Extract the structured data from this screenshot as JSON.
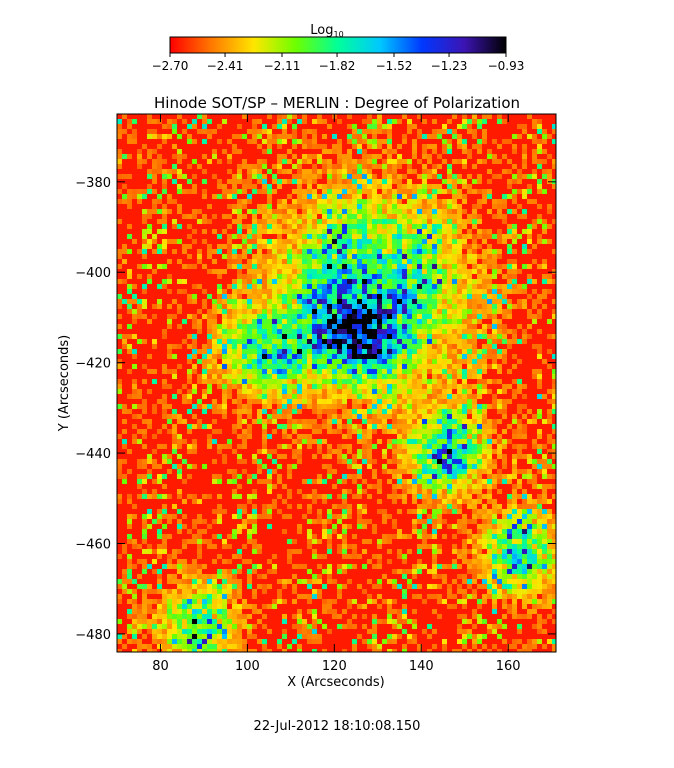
{
  "chart_data": {
    "type": "heatmap",
    "title": "Hinode SOT/SP – MERLIN : Degree of Polarization",
    "xlabel": "X (Arcseconds)",
    "ylabel": "Y (Arcseconds)",
    "xlim": [
      70,
      171
    ],
    "ylim": [
      -484,
      -365
    ],
    "x_ticks": [
      80,
      100,
      120,
      140,
      160
    ],
    "y_ticks": [
      -380,
      -400,
      -420,
      -440,
      -460,
      -480
    ],
    "colorbar": {
      "title_base": "Log",
      "title_sub": "10",
      "range": [
        -2.7,
        -0.93
      ],
      "tick_values": [
        -2.7,
        -2.41,
        -2.11,
        -1.82,
        -1.52,
        -1.23,
        -0.93
      ],
      "tick_labels": [
        "−2.70",
        "−2.41",
        "−2.11",
        "−1.82",
        "−1.52",
        "−1.23",
        "−0.93"
      ],
      "colors": [
        "#ff0000",
        "#ff7a00",
        "#ffe600",
        "#6cff00",
        "#00ff9a",
        "#00c8ff",
        "#0038ff",
        "#3c14b4",
        "#000000"
      ]
    },
    "features": [
      {
        "name": "strong-polarization-core",
        "x": 124,
        "y": -414,
        "value": -0.93
      },
      {
        "name": "network-region",
        "x": 128,
        "y": -405,
        "value": -1.3
      },
      {
        "name": "network-lane",
        "x": 146,
        "y": -440,
        "value": -1.4
      },
      {
        "name": "network-lane-left",
        "x": 103,
        "y": -418,
        "value": -1.6
      },
      {
        "name": "network-lane-bottom",
        "x": 88,
        "y": -478,
        "value": -1.7
      },
      {
        "name": "network-lane-right",
        "x": 163,
        "y": -462,
        "value": -1.6
      }
    ],
    "background_value": -2.7,
    "timestamp": "22-Jul-2012 18:10:08.150"
  }
}
